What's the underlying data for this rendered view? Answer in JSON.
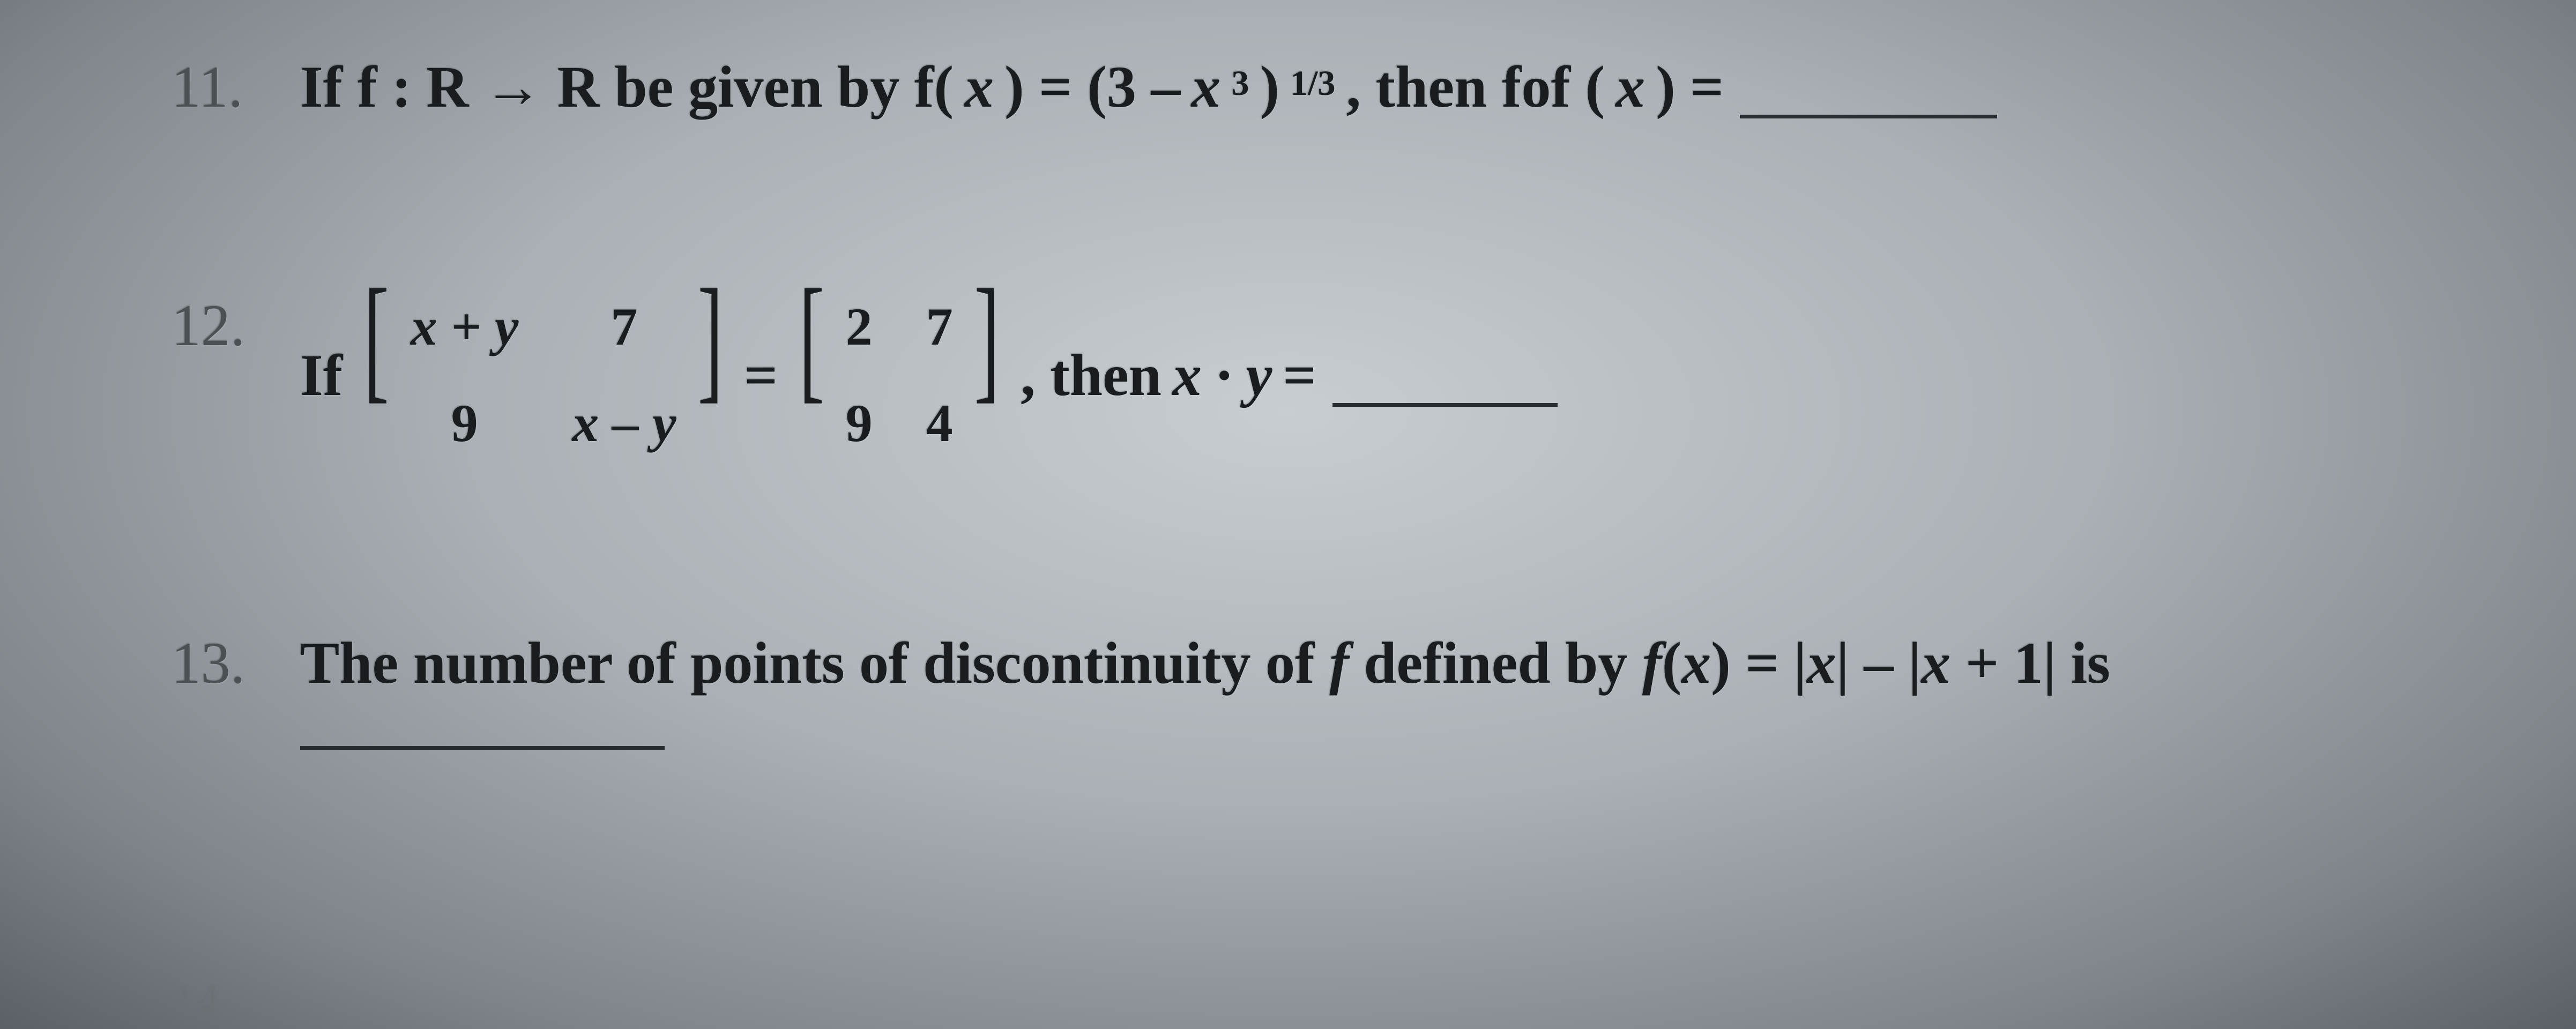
{
  "problems": {
    "p11": {
      "number": "11.",
      "prefix": "If f : R → R be given by f(",
      "var1": "x",
      "mid1": ") = (3 – ",
      "var2": "x",
      "exp_inner": "3",
      "mid2": ")",
      "exp_outer": "1/3",
      "mid3": ", then fof (",
      "var3": "x",
      "suffix": ") ="
    },
    "p12": {
      "number": "12.",
      "prefix": "If",
      "m1": {
        "a": "x + y",
        "b": "7",
        "c": "9",
        "d": "x – y"
      },
      "eq": "=",
      "m2": {
        "a": "2",
        "b": "7",
        "c": "9",
        "d": "4"
      },
      "mid": ", then ",
      "expr": "x · y",
      "suffix": " ="
    },
    "p13": {
      "number": "13.",
      "prefix": "The number of points of discontinuity of ",
      "fvar": "f",
      "mid": " defined by ",
      "fexpr1": "f",
      "fexpr2": "(",
      "fexpr_x": "x",
      "fexpr3": ") = |",
      "fexpr_x2": "x",
      "fexpr4": "| – |",
      "fexpr_x3": "x",
      "fexpr5": " + 1| is"
    },
    "ghost": "14"
  },
  "style": {
    "text_color": "#1a1d20",
    "muted_color": "#4b5055",
    "blank_color": "#2a2e32",
    "font_size_main": 110,
    "font_size_matrix": 100,
    "bracket_size": 260
  }
}
